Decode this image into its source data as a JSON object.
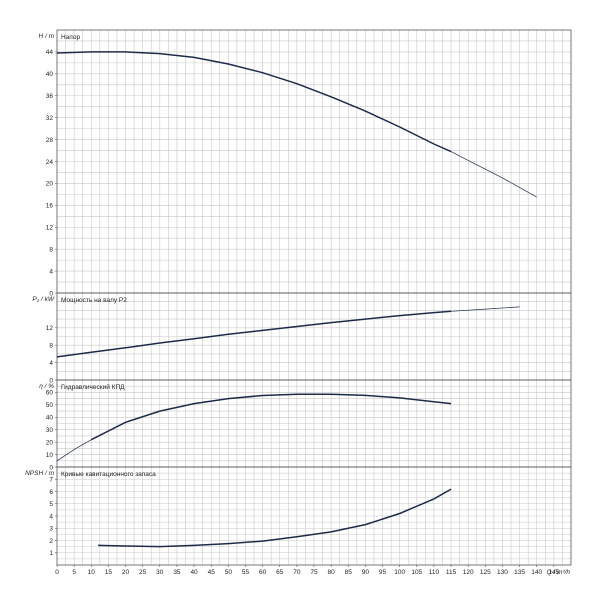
{
  "chart_data": [
    {
      "type": "line",
      "ylabel": "H / m",
      "title": "Напор",
      "ylim": [
        0,
        48
      ],
      "yticks": [
        0,
        4,
        8,
        12,
        16,
        20,
        24,
        28,
        32,
        36,
        40,
        44
      ],
      "series": [
        {
          "role": "main",
          "x": [
            0,
            10,
            20,
            30,
            40,
            50,
            60,
            70,
            80,
            90,
            100,
            110,
            115
          ],
          "y": [
            43.8,
            44.0,
            44.0,
            43.7,
            43.0,
            41.8,
            40.2,
            38.2,
            35.8,
            33.2,
            30.3,
            27.2,
            25.8
          ]
        },
        {
          "role": "extension",
          "x": [
            115,
            120,
            130,
            140
          ],
          "y": [
            25.8,
            24.2,
            21.0,
            17.5
          ]
        }
      ]
    },
    {
      "type": "line",
      "ylabel": "P₂ / kW",
      "title": "Мощность на валу P2",
      "ylim": [
        0,
        20
      ],
      "yticks": [
        0,
        4,
        8,
        12
      ],
      "series": [
        {
          "role": "main",
          "x": [
            0,
            10,
            20,
            30,
            40,
            50,
            60,
            70,
            80,
            90,
            100,
            110,
            115
          ],
          "y": [
            5.3,
            6.4,
            7.4,
            8.5,
            9.5,
            10.5,
            11.4,
            12.3,
            13.2,
            14.0,
            14.8,
            15.5,
            15.8
          ]
        },
        {
          "role": "extension",
          "x": [
            115,
            125,
            135
          ],
          "y": [
            15.8,
            16.3,
            16.8
          ]
        }
      ]
    },
    {
      "type": "line",
      "ylabel": "η / %",
      "title": "Гидравлический КПД",
      "ylim": [
        0,
        70
      ],
      "yticks": [
        0,
        10,
        20,
        30,
        40,
        50,
        60
      ],
      "series": [
        {
          "role": "extension",
          "x": [
            0,
            5,
            10
          ],
          "y": [
            5,
            14,
            22
          ]
        },
        {
          "role": "main",
          "x": [
            10,
            20,
            30,
            40,
            50,
            60,
            70,
            80,
            90,
            100,
            110,
            115
          ],
          "y": [
            22,
            36,
            45,
            51,
            55,
            57.5,
            58.6,
            58.6,
            57.6,
            55.6,
            52.5,
            51
          ]
        }
      ]
    },
    {
      "type": "line",
      "ylabel": "NPSH / m",
      "title": "Кривые кавитационного запаса",
      "ylim": [
        0,
        8
      ],
      "yticks": [
        1,
        2,
        3,
        4,
        5,
        6,
        7
      ],
      "series": [
        {
          "role": "main",
          "x": [
            12,
            20,
            30,
            40,
            50,
            60,
            70,
            80,
            90,
            100,
            110,
            115
          ],
          "y": [
            1.6,
            1.55,
            1.5,
            1.6,
            1.75,
            1.95,
            2.3,
            2.7,
            3.3,
            4.2,
            5.4,
            6.2
          ]
        }
      ]
    }
  ],
  "x_axis": {
    "label": "Q / m³/h",
    "ticks": [
      0,
      5,
      10,
      15,
      20,
      25,
      30,
      35,
      40,
      45,
      50,
      55,
      60,
      65,
      70,
      75,
      80,
      85,
      90,
      95,
      100,
      105,
      110,
      115,
      120,
      125,
      130,
      135,
      140,
      145
    ],
    "lim": [
      0,
      150
    ]
  }
}
